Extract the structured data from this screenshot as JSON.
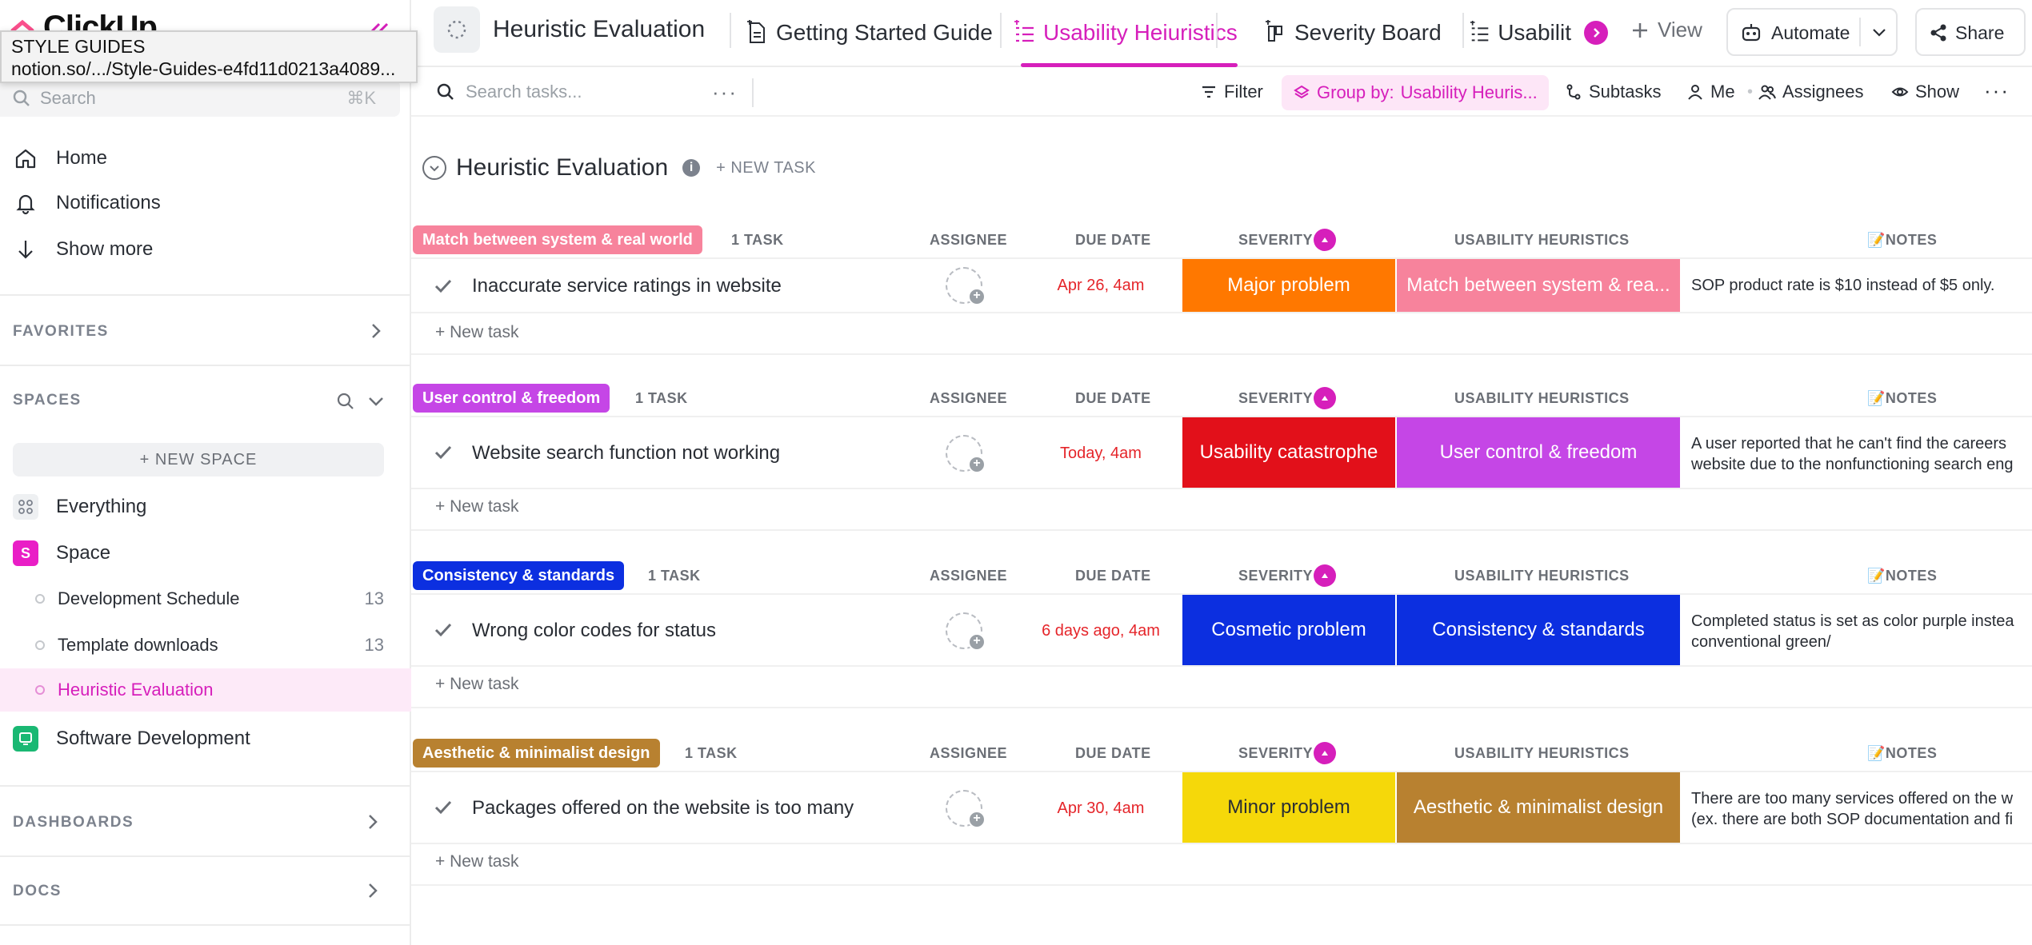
{
  "app": {
    "name": "ClickUp"
  },
  "tooltip": {
    "title": "STYLE GUIDES",
    "url": "notion.so/.../Style-Guides-e4fd11d0213a4089..."
  },
  "sidebar": {
    "search_placeholder": "Search",
    "search_shortcut": "⌘K",
    "nav": [
      {
        "label": "Home",
        "icon": "home-icon"
      },
      {
        "label": "Notifications",
        "icon": "bell-icon"
      },
      {
        "label": "Show more",
        "icon": "arrow-down-icon"
      }
    ],
    "favorites_title": "FAVORITES",
    "spaces_title": "SPACES",
    "new_space_label": "+ NEW SPACE",
    "everything_label": "Everything",
    "space": {
      "initial": "S",
      "label": "Space",
      "color": "#e91ec6"
    },
    "lists": [
      {
        "label": "Development Schedule",
        "count": "13"
      },
      {
        "label": "Template downloads",
        "count": "13"
      },
      {
        "label": "Heuristic Evaluation",
        "count": ""
      }
    ],
    "software_dev_label": "Software Development",
    "dashboards_title": "DASHBOARDS",
    "docs_title": "DOCS"
  },
  "header": {
    "location_title": "Heuristic Evaluation",
    "tabs": [
      {
        "label": "Getting Started Guide",
        "icon": "doc-icon"
      },
      {
        "label": "Usability Heiuristics",
        "icon": "list-icon",
        "active": true
      },
      {
        "label": "Severity Board",
        "icon": "board-icon"
      },
      {
        "label": "Usabilit",
        "icon": "list-icon"
      }
    ],
    "add_view_label": "View",
    "automate_label": "Automate",
    "share_label": "Share"
  },
  "toolbar": {
    "search_placeholder": "Search tasks...",
    "filter_label": "Filter",
    "group_by_label": "Group by:",
    "group_by_value": "Usability Heuris...",
    "subtasks_label": "Subtasks",
    "me_label": "Me",
    "assignees_label": "Assignees",
    "show_label": "Show"
  },
  "list": {
    "title": "Heuristic Evaluation",
    "new_task_label": "+ NEW TASK"
  },
  "columns": {
    "assignee": "ASSIGNEE",
    "due_date": "DUE DATE",
    "severity": "SEVERITY",
    "heuristics": "USABILITY HEURISTICS",
    "notes": "📝NOTES"
  },
  "groups": [
    {
      "label": "Match between system & real world",
      "color": "#f7839c",
      "count": "1 TASK",
      "task": {
        "name": "Inaccurate service ratings in website",
        "due": "Apr 26, 4am",
        "severity": "Major problem",
        "severity_color": "#ff7800",
        "heuristic": "Match between system & rea...",
        "heuristic_color": "#f7839c",
        "notes": [
          "SOP product rate is $10 instead of $5 only."
        ]
      },
      "new_task": "+ New task"
    },
    {
      "label": "User control & freedom",
      "color": "#c546e6",
      "count": "1 TASK",
      "task": {
        "name": "Website search function not working",
        "due": "Today, 4am",
        "severity": "Usability catastrophe",
        "severity_color": "#e2101a",
        "heuristic": "User control & freedom",
        "heuristic_color": "#c546e6",
        "notes": [
          "A user reported that he can't find the careers",
          "website due to the nonfunctioning search eng"
        ]
      },
      "new_task": "+ New task"
    },
    {
      "label": "Consistency & standards",
      "color": "#0c2fe0",
      "count": "1 TASK",
      "task": {
        "name": "Wrong color codes for status",
        "due": "6 days ago, 4am",
        "severity": "Cosmetic problem",
        "severity_color": "#0c2fe0",
        "heuristic": "Consistency & standards",
        "heuristic_color": "#0c2fe0",
        "notes": [
          "Completed status is set as color purple instea",
          "conventional green/"
        ]
      },
      "new_task": "+ New task"
    },
    {
      "label": "Aesthetic & minimalist design",
      "color": "#b88130",
      "count": "1 TASK",
      "task": {
        "name": "Packages offered on the website is too many",
        "due": "Apr 30, 4am",
        "severity": "Minor problem",
        "severity_color": "#f5d80a",
        "heuristic": "Aesthetic & minimalist design",
        "heuristic_color": "#b88130",
        "notes": [
          "There are too many services offered on the w",
          "(ex. there are both SOP documentation and fi"
        ]
      },
      "new_task": "+ New task"
    }
  ]
}
